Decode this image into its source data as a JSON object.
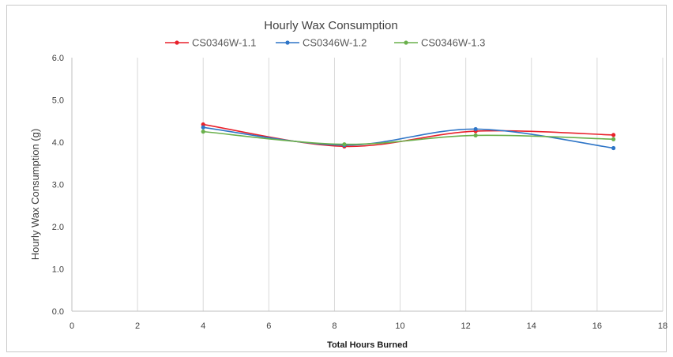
{
  "chart_data": {
    "type": "line",
    "title": "Hourly Wax Consumption",
    "xlabel": "Total Hours Burned",
    "ylabel": "Hourly Wax Consumption (g)",
    "xlim": [
      0,
      18
    ],
    "ylim": [
      0.0,
      6.0
    ],
    "xticks": [
      "0",
      "2",
      "4",
      "6",
      "8",
      "10",
      "12",
      "14",
      "16",
      "18"
    ],
    "yticks": [
      "0.0",
      "1.0",
      "2.0",
      "3.0",
      "4.0",
      "5.0",
      "6.0"
    ],
    "grid": "vertical",
    "legend_position": "top",
    "series": [
      {
        "name": "CS0346W-1.1",
        "color": "#e8212b",
        "points": [
          [
            4.0,
            4.42
          ],
          [
            8.3,
            3.9
          ],
          [
            12.3,
            4.26
          ],
          [
            16.5,
            4.17
          ]
        ]
      },
      {
        "name": "CS0346W-1.2",
        "color": "#2e75c7",
        "points": [
          [
            4.0,
            4.35
          ],
          [
            8.3,
            3.93
          ],
          [
            12.3,
            4.31
          ],
          [
            16.5,
            3.86
          ]
        ]
      },
      {
        "name": "CS0346W-1.3",
        "color": "#6ab04c",
        "points": [
          [
            4.0,
            4.25
          ],
          [
            8.3,
            3.95
          ],
          [
            12.3,
            4.16
          ],
          [
            16.5,
            4.07
          ]
        ]
      }
    ]
  }
}
